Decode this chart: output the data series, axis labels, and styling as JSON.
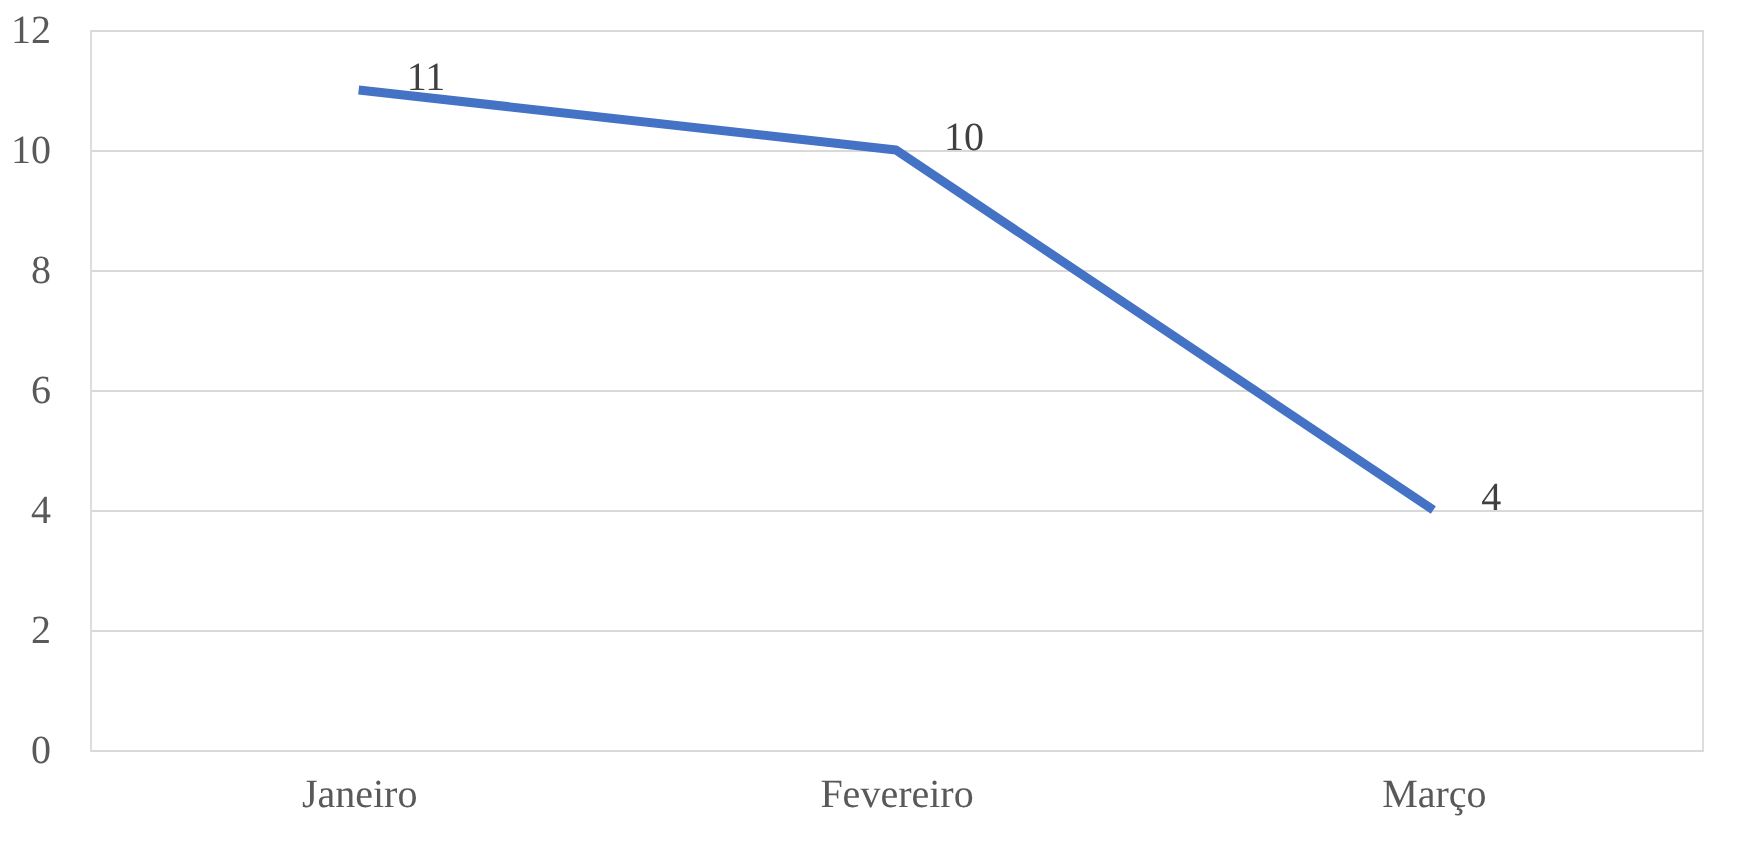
{
  "chart_data": {
    "type": "line",
    "categories": [
      "Janeiro",
      "Fevereiro",
      "Março"
    ],
    "series": [
      {
        "color": "#4472c4",
        "values": [
          11,
          10,
          4
        ]
      }
    ],
    "ylim": [
      0,
      12
    ],
    "yticks": [
      0,
      2,
      4,
      6,
      8,
      10,
      12
    ],
    "grid": "y",
    "data_labels": true,
    "legend": false,
    "marker": "none",
    "line_style": "solid"
  }
}
